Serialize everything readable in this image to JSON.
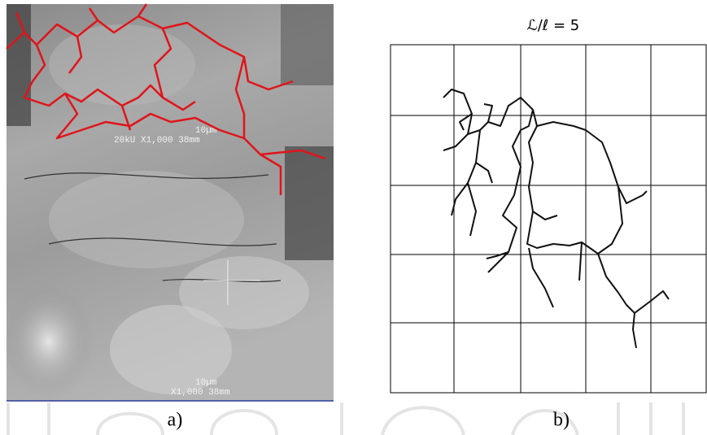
{
  "panels": [
    {
      "label": "a)",
      "scale_top": "10µm",
      "caption_top": "20kU   X1,000   38mm",
      "scale_bottom": "10µm",
      "caption_bottom": "X1,000   38mm"
    },
    {
      "label": "b)",
      "title": "ℒ/ℓ = 5"
    }
  ]
}
